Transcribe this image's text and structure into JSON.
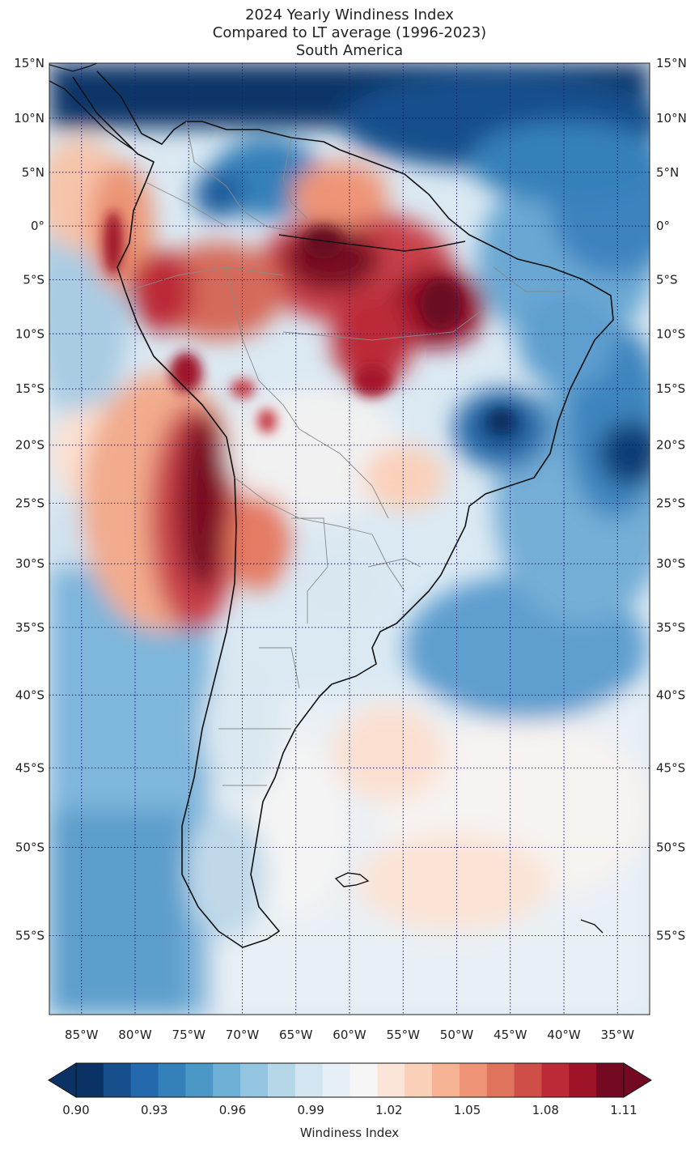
{
  "title": {
    "line1": "2024 Yearly Windiness Index",
    "line2": "Compared to LT average (1996-2023)",
    "line3": "South America"
  },
  "map": {
    "lon_range": [
      -88,
      -32
    ],
    "lat_range": [
      -59,
      15
    ],
    "lat_labels": [
      "15°N",
      "10°N",
      "5°N",
      "0°",
      "5°S",
      "10°S",
      "15°S",
      "20°S",
      "25°S",
      "30°S",
      "35°S",
      "40°S",
      "45°S",
      "50°S",
      "55°S"
    ],
    "lat_values": [
      15,
      10,
      5,
      0,
      -5,
      -10,
      -15,
      -20,
      -25,
      -30,
      -35,
      -40,
      -45,
      -50,
      -55
    ],
    "lon_labels": [
      "85°W",
      "80°W",
      "75°W",
      "70°W",
      "65°W",
      "60°W",
      "55°W",
      "50°W",
      "45°W",
      "40°W",
      "35°W"
    ],
    "lon_values": [
      -85,
      -80,
      -75,
      -70,
      -65,
      -60,
      -55,
      -50,
      -45,
      -40,
      -35
    ],
    "gridline_style": "dotted navy"
  },
  "colorbar": {
    "label": "Windiness Index",
    "tick_labels": [
      "0.90",
      "0.93",
      "0.96",
      "0.99",
      "1.02",
      "1.05",
      "1.08",
      "1.11"
    ],
    "min": 0.9,
    "max": 1.11,
    "colors": [
      "#0b3264",
      "#164f8c",
      "#2468ae",
      "#3480b9",
      "#4b98c7",
      "#6dafd5",
      "#94c5e0",
      "#b6d7e8",
      "#d2e5f0",
      "#e6eff5",
      "#f6f6f6",
      "#fbe5d9",
      "#fbd0b9",
      "#f6b394",
      "#ef9476",
      "#e0735c",
      "#cf4e48",
      "#bc2a37",
      "#9f1329",
      "#740a21"
    ],
    "extend": "both"
  }
}
